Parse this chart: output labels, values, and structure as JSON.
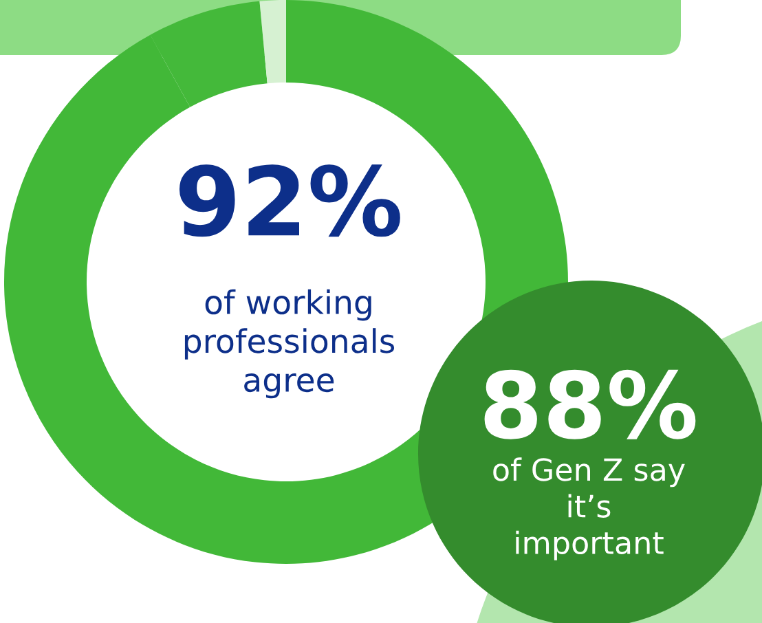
{
  "chart_data": {
    "type": "donut",
    "categories": [
      null,
      null,
      null
    ],
    "values": [
      92,
      6.5,
      1.5
    ],
    "colors": [
      "#42b838",
      "#44b93a",
      "#d6f1d2"
    ],
    "annotations": [
      "92%",
      "of working professionals agree",
      "88%",
      "of Gen Z say it’s important"
    ]
  }
}
